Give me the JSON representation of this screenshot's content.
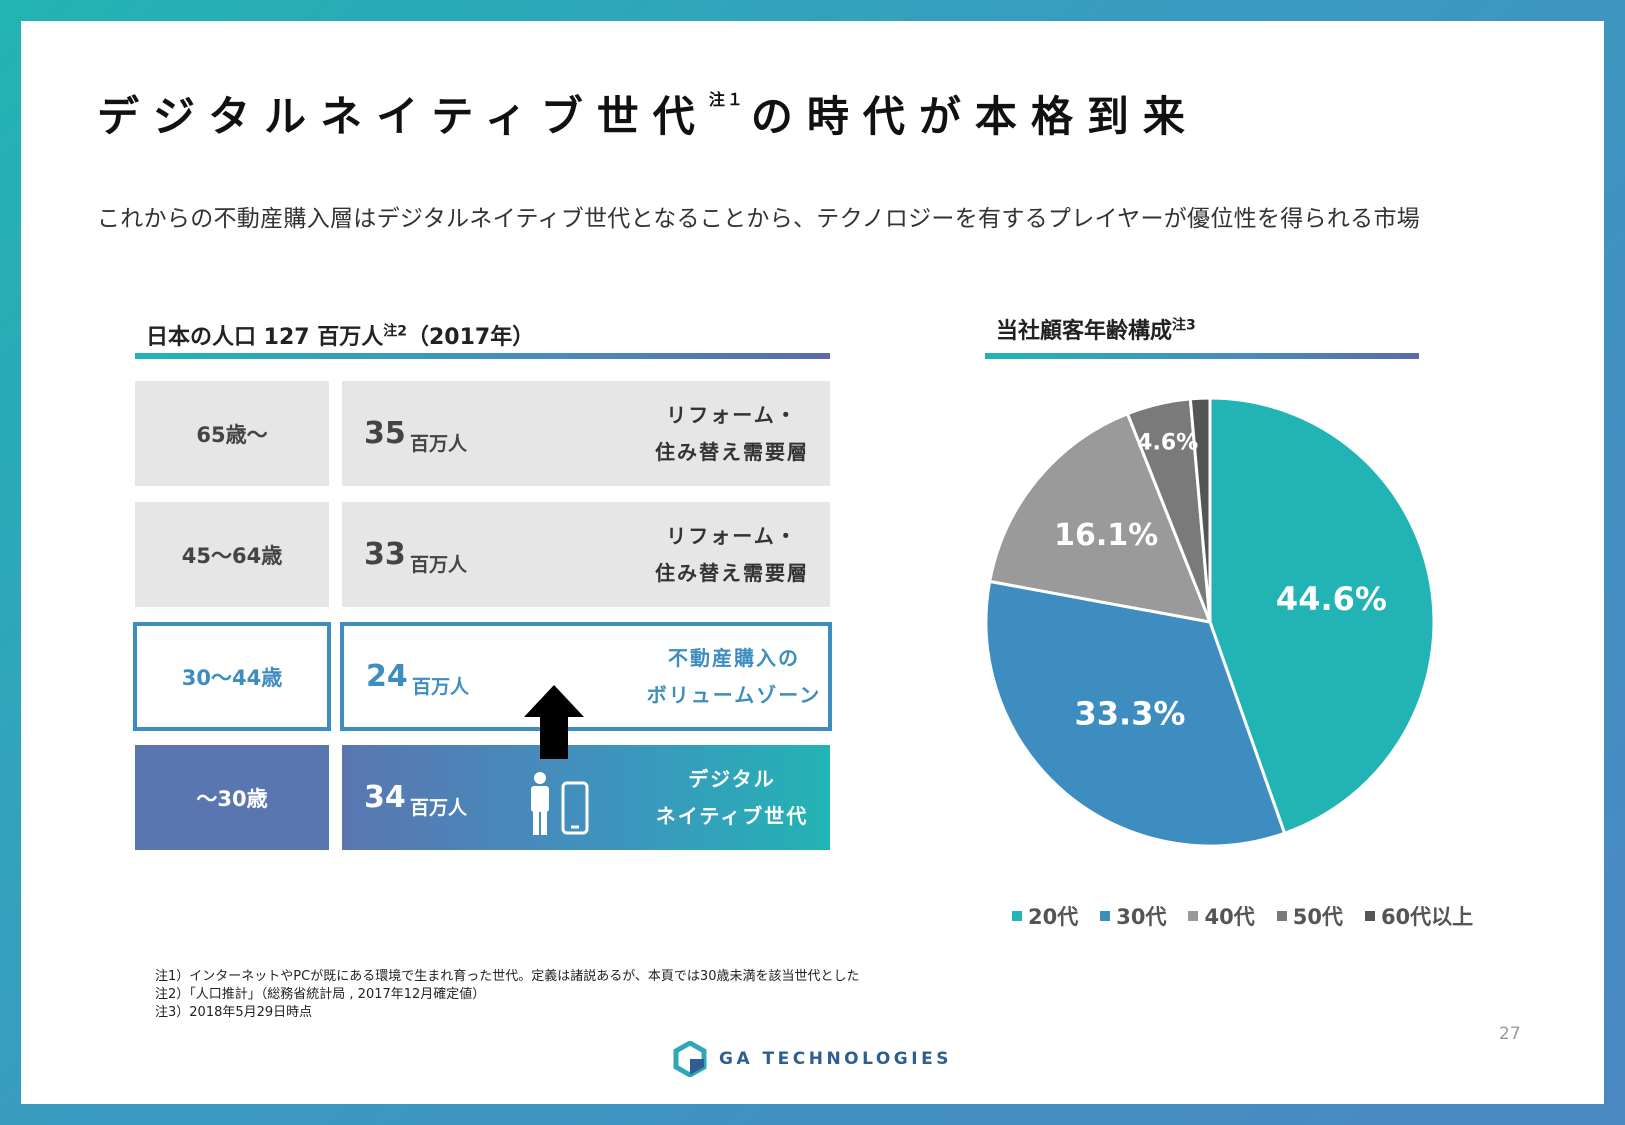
{
  "header": {
    "title_main": "デジタルネイティブ世代",
    "title_note": "注１",
    "title_rest": "の時代が本格到来",
    "subtitle": "これからの不動産購入層はデジタルネイティブ世代となることから、テクノロジーを有するプレイヤーが優位性を得られる市場"
  },
  "population": {
    "title": "日本の人口 127 百万人",
    "title_note": "注2",
    "title_year": "（2017年）",
    "rows": [
      {
        "age": "65歳〜",
        "value": "35",
        "unit": "百万人",
        "desc1": "リフォーム・",
        "desc2": "住み替え需要層"
      },
      {
        "age": "45〜64歳",
        "value": "33",
        "unit": "百万人",
        "desc1": "リフォーム・",
        "desc2": "住み替え需要層"
      },
      {
        "age": "30〜44歳",
        "value": "24",
        "unit": "百万人",
        "desc1": "不動産購入の",
        "desc2": "ボリュームゾーン"
      },
      {
        "age": "〜30歳",
        "value": "34",
        "unit": "百万人",
        "desc1": "デジタル",
        "desc2": "ネイティブ世代"
      }
    ]
  },
  "customer": {
    "title": "当社顧客年齢構成",
    "title_note": "注3"
  },
  "chart_data": {
    "type": "pie",
    "title": "当社顧客年齢構成",
    "labels": [
      "20代",
      "30代",
      "40代",
      "50代",
      "60代以上"
    ],
    "values": [
      44.6,
      33.3,
      16.1,
      4.6,
      1.4
    ],
    "value_labels": [
      "44.6%",
      "33.3%",
      "16.1%",
      "4.6%",
      ""
    ],
    "colors": [
      "#22b4b4",
      "#3e8dc0",
      "#9a9a9a",
      "#7a7a7a",
      "#555555"
    ],
    "legend_position": "bottom"
  },
  "notes": [
    "注1）インターネットやPCが既にある環境で生まれ育った世代。定義は諸説あるが、本頁では30歳未満を該当世代とした",
    "注2）「人口推計」（総務省統計局 , 2017年12月確定値）",
    "注3）2018年5月29日時点"
  ],
  "footer": {
    "logo_text": "GA TECHNOLOGIES",
    "page_number": "27"
  }
}
